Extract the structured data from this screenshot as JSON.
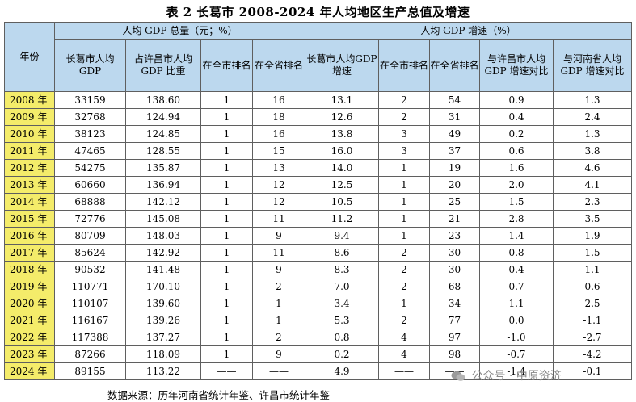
{
  "title": "表 2 长葛市 2008-2024 年人均地区生产总值及增速",
  "headers": {
    "year": "年份",
    "group_gdp": "人均 GDP 总量（元；%）",
    "group_growth": "人均 GDP 增速（%）",
    "cols": [
      "长葛市人均GDP",
      "占许昌市人均 GDP 比重",
      "在全市排名",
      "在全省排名",
      "长葛市人均GDP 增速",
      "在全市排名",
      "在全省排名",
      "与许昌市人均GDP 增速对比",
      "与河南省人均GDP 增速对比"
    ]
  },
  "rows": [
    {
      "year": "2008 年",
      "cells": [
        "33159",
        "138.60",
        "1",
        "16",
        "13.1",
        "2",
        "54",
        "0.9",
        "1.3"
      ]
    },
    {
      "year": "2009 年",
      "cells": [
        "32768",
        "124.94",
        "1",
        "18",
        "12.6",
        "2",
        "31",
        "0.4",
        "2.4"
      ]
    },
    {
      "year": "2010 年",
      "cells": [
        "38123",
        "124.85",
        "1",
        "16",
        "13.8",
        "3",
        "49",
        "0.2",
        "1.3"
      ]
    },
    {
      "year": "2011 年",
      "cells": [
        "47465",
        "128.55",
        "1",
        "15",
        "16.0",
        "3",
        "37",
        "0.6",
        "3.8"
      ]
    },
    {
      "year": "2012 年",
      "cells": [
        "54275",
        "135.87",
        "1",
        "13",
        "14.0",
        "1",
        "19",
        "1.6",
        "4.6"
      ]
    },
    {
      "year": "2013 年",
      "cells": [
        "60660",
        "136.94",
        "1",
        "12",
        "12.5",
        "1",
        "20",
        "2.0",
        "4.1"
      ]
    },
    {
      "year": "2014 年",
      "cells": [
        "68888",
        "142.12",
        "1",
        "12",
        "10.5",
        "1",
        "25",
        "1.5",
        "2.3"
      ]
    },
    {
      "year": "2015 年",
      "cells": [
        "72776",
        "145.08",
        "1",
        "11",
        "11.2",
        "1",
        "21",
        "2.8",
        "3.5"
      ]
    },
    {
      "year": "2016 年",
      "cells": [
        "80709",
        "148.03",
        "1",
        "9",
        "9.4",
        "1",
        "23",
        "1.4",
        "1.9"
      ]
    },
    {
      "year": "2017 年",
      "cells": [
        "85624",
        "142.92",
        "1",
        "11",
        "8.6",
        "2",
        "30",
        "0.8",
        "1.5"
      ]
    },
    {
      "year": "2018 年",
      "cells": [
        "90532",
        "141.48",
        "1",
        "9",
        "8.3",
        "2",
        "30",
        "0.4",
        "1.1"
      ]
    },
    {
      "year": "2019 年",
      "cells": [
        "110771",
        "170.10",
        "1",
        "2",
        "7.0",
        "2",
        "68",
        "0.7",
        "0.6"
      ]
    },
    {
      "year": "2020 年",
      "cells": [
        "110107",
        "139.60",
        "1",
        "1",
        "3.4",
        "1",
        "34",
        "1.1",
        "2.5"
      ]
    },
    {
      "year": "2021 年",
      "cells": [
        "116167",
        "139.26",
        "1",
        "1",
        "5.3",
        "2",
        "77",
        "0.0",
        "-1.1"
      ]
    },
    {
      "year": "2022 年",
      "cells": [
        "117388",
        "137.27",
        "1",
        "2",
        "0.8",
        "4",
        "97",
        "-1.0",
        "-2.7"
      ]
    },
    {
      "year": "2023 年",
      "cells": [
        "87266",
        "118.09",
        "1",
        "9",
        "0.2",
        "4",
        "98",
        "-0.7",
        "-4.2"
      ]
    },
    {
      "year": "2024 年",
      "cells": [
        "89155",
        "113.22",
        "——",
        "——",
        "4.9",
        "——",
        "——",
        "-1.4",
        "-0.1"
      ]
    }
  ],
  "source": "数据来源：历年河南省统计年鉴、许昌市统计年鉴",
  "watermark": "公众号 · 中原资济",
  "colors": {
    "header_bg": "#bcd8ee",
    "year_bg": "#f4ec6a",
    "border": "#5f5f5f"
  }
}
